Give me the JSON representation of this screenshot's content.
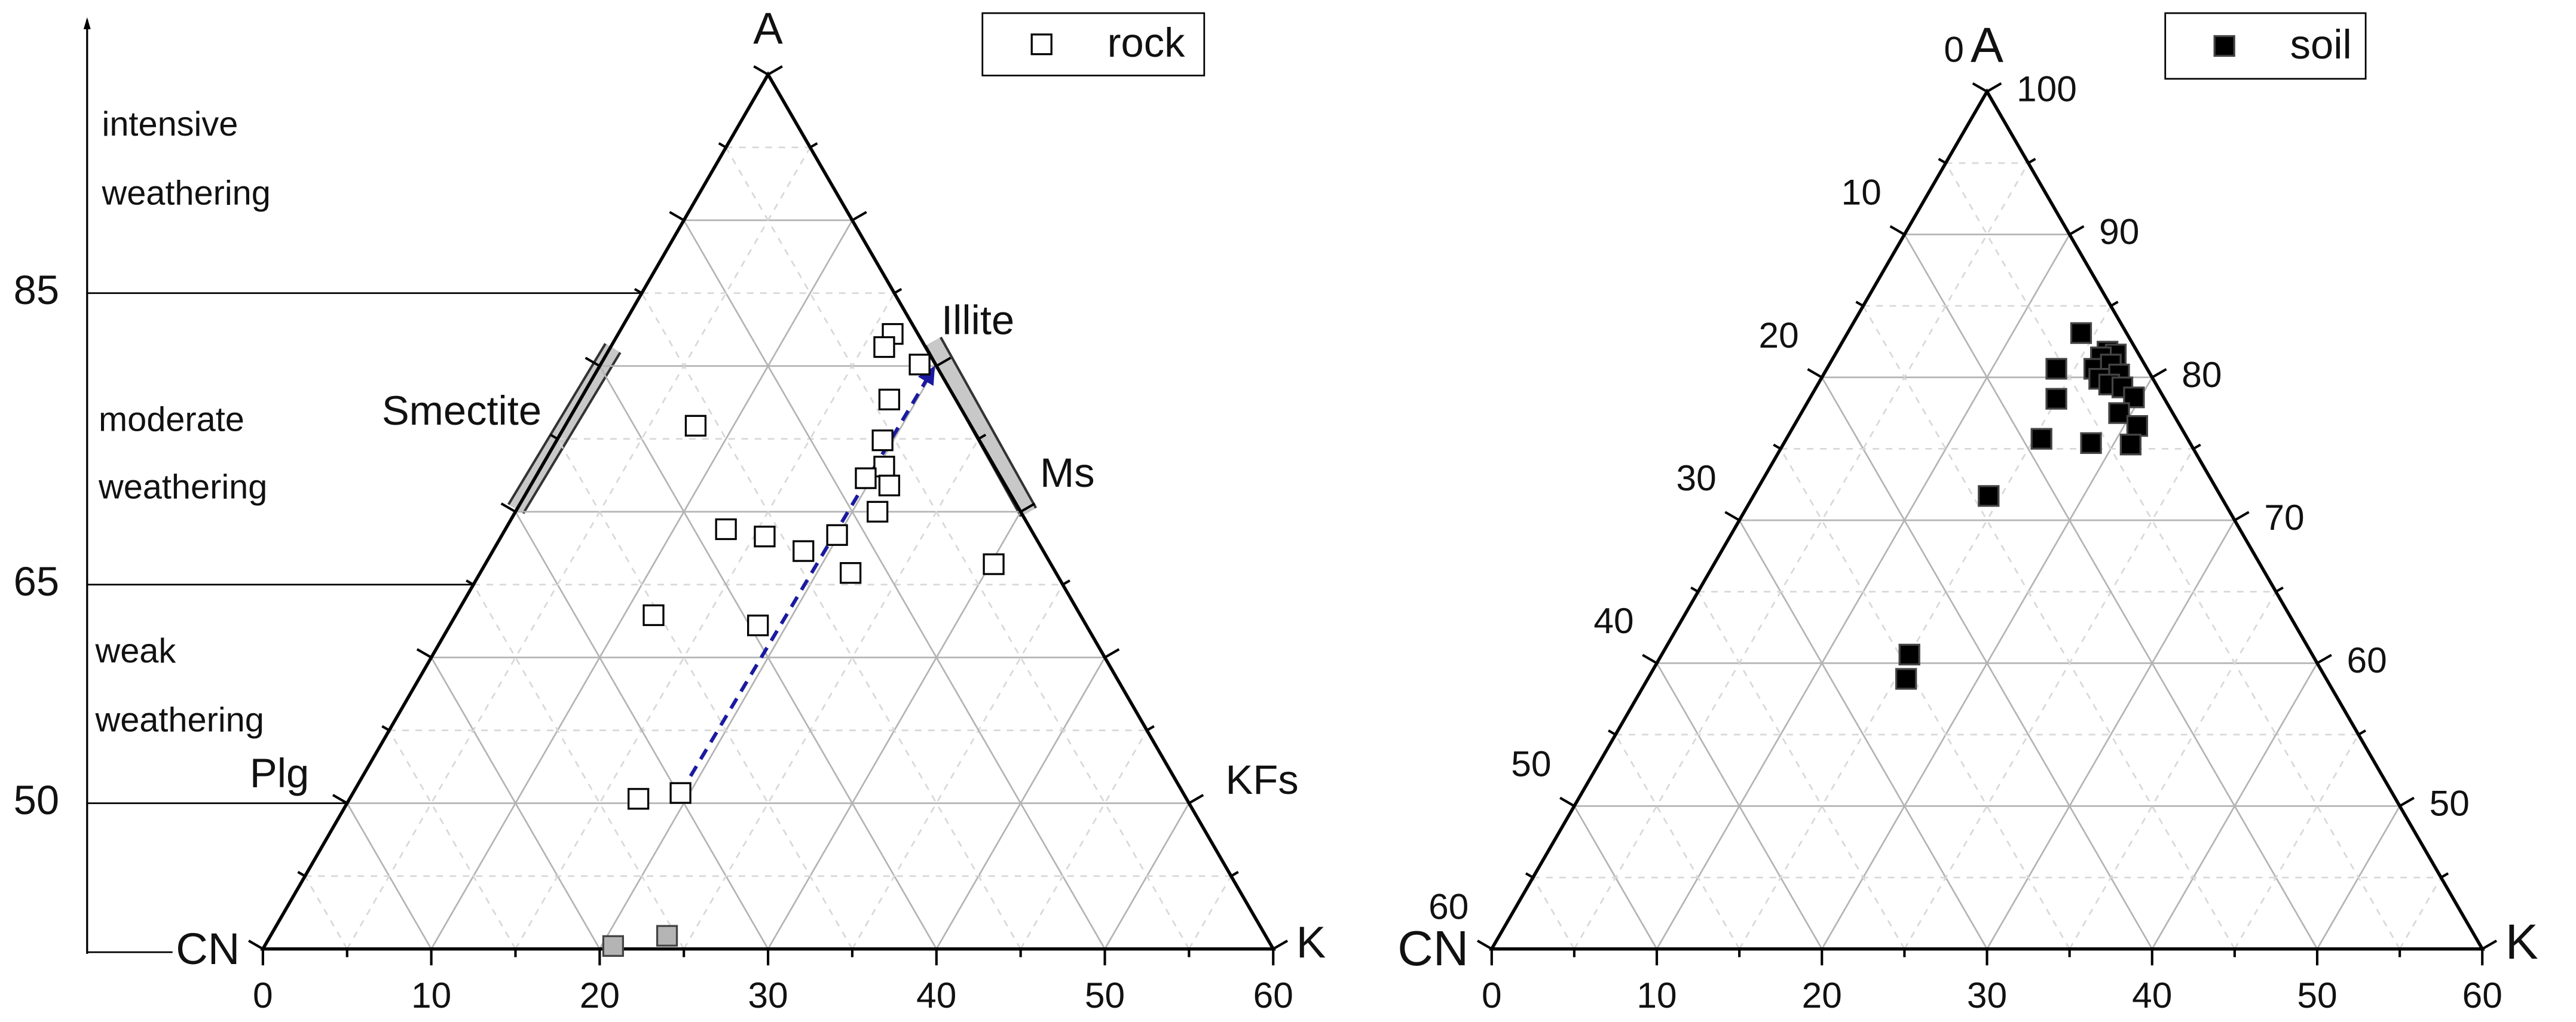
{
  "chart_data": [
    {
      "type": "ternary",
      "corners": {
        "top": "A",
        "left": "CN",
        "right": "K"
      },
      "xlim": [
        0,
        60
      ],
      "xticks": [
        0,
        10,
        20,
        30,
        40,
        50,
        60
      ],
      "ylim": [
        40,
        100
      ],
      "yticks": [
        50,
        65,
        85
      ],
      "grid": true,
      "legend": "upper right",
      "series": [
        {
          "name": "rock",
          "color": "#000000",
          "marker": "open-square",
          "x": [
            37.4,
            36.9,
            39.0,
            37.2,
            25.7,
            36.8,
            36.9,
            35.8,
            37.2,
            36.5,
            27.5,
            29.8,
            34.1,
            32.1,
            34.9,
            43.4,
            23.2,
            29.4,
            22.3,
            24.8
          ],
          "values": [
            82.2,
            81.3,
            80.1,
            77.7,
            75.9,
            74.9,
            73.1,
            72.3,
            71.8,
            70.0,
            68.8,
            68.3,
            68.4,
            67.3,
            65.8,
            66.4,
            62.9,
            62.2,
            50.3,
            50.7
          ]
        },
        {
          "color": "#b4b4b4",
          "marker": "filled-square",
          "x": [
            20.8,
            24.0
          ],
          "values": [
            40.2,
            40.9
          ]
        }
      ],
      "arrow": {
        "color": "#1a1aa0",
        "x": [
          24.8,
          39.8
        ],
        "values": [
          50.7,
          79.8
        ]
      },
      "annotations": [
        "intensive",
        "weathering",
        "moderate",
        "weathering",
        "weak",
        "weathering",
        "Smectite",
        "Illite",
        "Ms",
        "Plg",
        "KFs"
      ]
    },
    {
      "type": "ternary",
      "corners": {
        "top": "A",
        "left": "CN",
        "right": "K"
      },
      "xlim": [
        0,
        60
      ],
      "xticks": [
        0,
        10,
        20,
        30,
        40,
        50,
        60
      ],
      "ylim": [
        40,
        100
      ],
      "yticks": [
        50,
        60,
        70,
        80,
        90,
        100
      ],
      "cnticks": [
        0,
        10,
        20,
        30,
        40,
        50,
        60
      ],
      "grid": true,
      "legend": "upper right",
      "series": [
        {
          "name": "soil",
          "color": "#000000",
          "marker": "filled-square",
          "x": [
            35.7,
            37.3,
            37.8,
            36.9,
            34.2,
            36.5,
            37.5,
            38.0,
            36.8,
            37.4,
            38.2,
            38.9,
            34.2,
            38.0,
            39.1,
            33.3,
            36.3,
            38.7,
            30.1,
            25.3,
            25.1
          ],
          "values": [
            83.1,
            81.8,
            81.6,
            81.4,
            80.6,
            80.6,
            80.9,
            80.2,
            79.9,
            79.5,
            79.3,
            78.6,
            78.5,
            77.5,
            76.6,
            75.7,
            75.4,
            75.3,
            71.7,
            60.6,
            58.9
          ]
        }
      ]
    }
  ]
}
